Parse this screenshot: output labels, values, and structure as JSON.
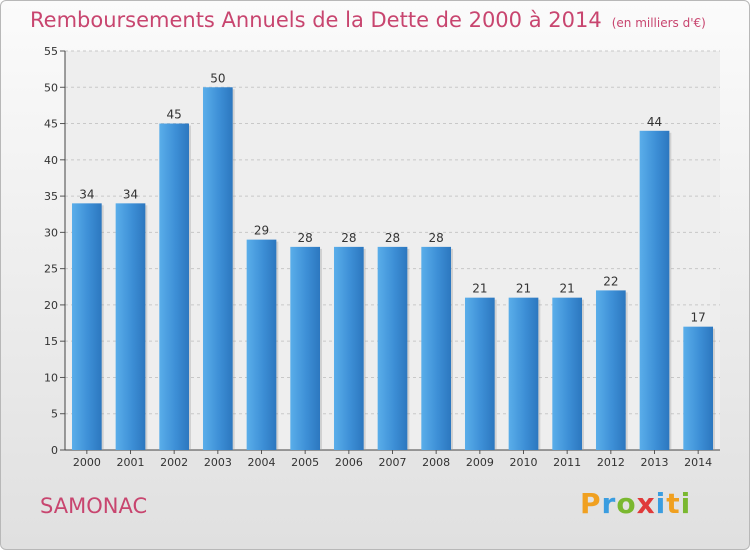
{
  "chart_data": {
    "type": "bar",
    "title": "Remboursements Annuels de la Dette de 2000 à 2014",
    "subtitle": "(en milliers d'€)",
    "categories": [
      "2000",
      "2001",
      "2002",
      "2003",
      "2004",
      "2005",
      "2006",
      "2007",
      "2008",
      "2009",
      "2010",
      "2011",
      "2012",
      "2013",
      "2014"
    ],
    "values": [
      34,
      34,
      45,
      50,
      29,
      28,
      28,
      28,
      28,
      21,
      21,
      21,
      22,
      44,
      17
    ],
    "ylim": [
      0,
      55
    ],
    "yticks": [
      0,
      5,
      10,
      15,
      20,
      25,
      30,
      35,
      40,
      45,
      50,
      55
    ],
    "grid": true,
    "bar_color": "#3d8fd6"
  },
  "footer": {
    "town": "SAMONAC",
    "logo": [
      "P",
      "r",
      "o",
      "x",
      "i",
      "t",
      "i"
    ]
  },
  "colors": {
    "title": "#c8456f",
    "logo": [
      "#f0a020",
      "#3a9de0",
      "#7ab830",
      "#e03a3a",
      "#3a9de0",
      "#f0a020",
      "#7ab830"
    ]
  }
}
